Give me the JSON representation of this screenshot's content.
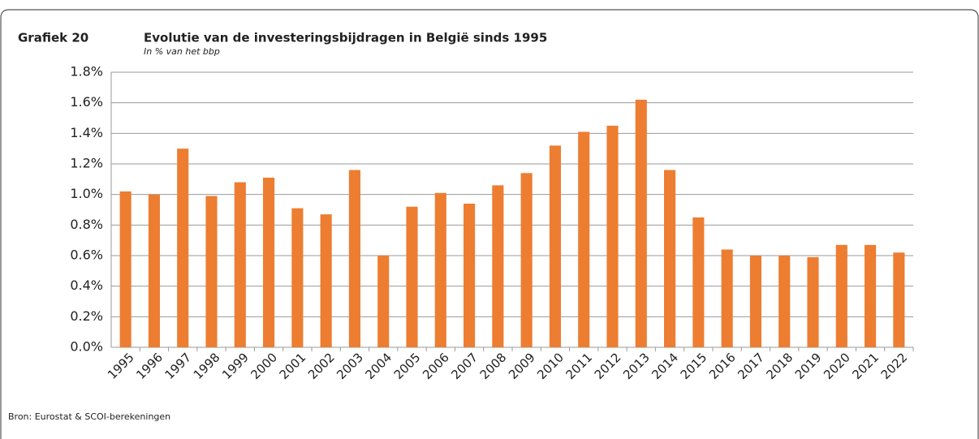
{
  "chart_data": {
    "type": "bar",
    "label": "Grafiek 20",
    "title": "Evolutie van de investeringsbijdragen in België sinds 1995",
    "subtitle": "In % van het bbp",
    "source": "Bron: Eurostat & SCOI-berekeningen",
    "categories": [
      "1995",
      "1996",
      "1997",
      "1998",
      "1999",
      "2000",
      "2001",
      "2002",
      "2003",
      "2004",
      "2005",
      "2006",
      "2007",
      "2008",
      "2009",
      "2010",
      "2011",
      "2012",
      "2013",
      "2014",
      "2015",
      "2016",
      "2017",
      "2018",
      "2019",
      "2020",
      "2021",
      "2022"
    ],
    "values": [
      1.02,
      1.0,
      1.3,
      0.99,
      1.08,
      1.11,
      0.91,
      0.87,
      1.16,
      0.6,
      0.92,
      1.01,
      0.94,
      1.06,
      1.14,
      1.32,
      1.41,
      1.45,
      1.62,
      1.16,
      0.85,
      0.64,
      0.6,
      0.6,
      0.59,
      0.67,
      0.67,
      0.62
    ],
    "color": "#ed7d31",
    "ylim": [
      0,
      1.8
    ],
    "yticks": [
      {
        "value": 0,
        "label": "0.0%"
      },
      {
        "value": 0.2,
        "label": "0.2%"
      },
      {
        "value": 0.4,
        "label": "0.4%"
      },
      {
        "value": 0.6,
        "label": "0.6%"
      },
      {
        "value": 0.8,
        "label": "0.8%"
      },
      {
        "value": 1.0,
        "label": "1.0%"
      },
      {
        "value": 1.2,
        "label": "1.2%"
      },
      {
        "value": 1.4,
        "label": "1.4%"
      },
      {
        "value": 1.6,
        "label": "1.6%"
      },
      {
        "value": 1.8,
        "label": "1.8%"
      }
    ],
    "grid": true
  }
}
